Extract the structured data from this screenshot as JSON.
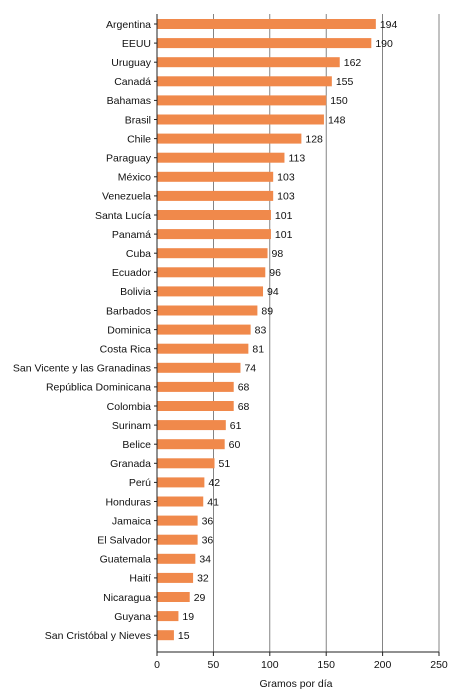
{
  "colors": {
    "bar": "#f0894b",
    "grid": "#666666",
    "axis": "#222222",
    "text": "#111111"
  },
  "chart_data": {
    "type": "bar",
    "orientation": "horizontal",
    "categories": [
      "Argentina",
      "EEUU",
      "Uruguay",
      "Canadá",
      "Bahamas",
      "Brasil",
      "Chile",
      "Paraguay",
      "México",
      "Venezuela",
      "Santa Lucía",
      "Panamá",
      "Cuba",
      "Ecuador",
      "Bolivia",
      "Barbados",
      "Dominica",
      "Costa Rica",
      "San Vicente y las Granadinas",
      "República Dominicana",
      "Colombia",
      "Surinam",
      "Belice",
      "Granada",
      "Perú",
      "Honduras",
      "Jamaica",
      "El Salvador",
      "Guatemala",
      "Haití",
      "Nicaragua",
      "Guyana",
      "San Cristóbal y Nieves"
    ],
    "values": [
      194,
      190,
      162,
      155,
      150,
      148,
      128,
      113,
      103,
      103,
      101,
      101,
      98,
      96,
      94,
      89,
      83,
      81,
      74,
      68,
      68,
      61,
      60,
      51,
      42,
      41,
      36,
      36,
      34,
      32,
      29,
      19,
      15
    ],
    "xlabel": "Gramos por día",
    "ylabel": "",
    "xlim": [
      0,
      250
    ],
    "xticks": [
      "0",
      "50",
      "100",
      "150",
      "200",
      "250"
    ],
    "grid": true
  }
}
